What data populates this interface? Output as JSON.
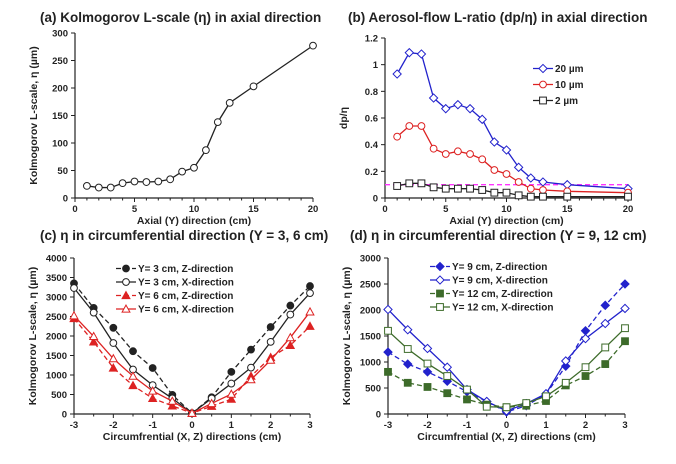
{
  "chart_data": [
    {
      "id": "a",
      "type": "line",
      "title": "(a) Kolmogorov L-scale (η) in axial direction",
      "xlabel": "Axial (Y) direction (cm)",
      "ylabel": "Kolmogorov L-scale, η (µm)",
      "xlim": [
        0,
        20
      ],
      "ylim": [
        0,
        300
      ],
      "xticks": [
        0,
        5,
        10,
        15,
        20
      ],
      "yticks": [
        0,
        50,
        100,
        150,
        200,
        250,
        300
      ],
      "x": [
        1,
        2,
        3,
        4,
        5,
        6,
        7,
        8,
        9,
        10,
        11,
        12,
        13,
        15,
        20
      ],
      "series": [
        {
          "name": "η",
          "color": "#222222",
          "marker": "circle-open",
          "dash": false,
          "values": [
            22,
            19,
            19,
            27,
            30,
            29,
            30,
            34,
            48,
            55,
            87,
            138,
            173,
            203,
            277
          ]
        }
      ],
      "legend": null
    },
    {
      "id": "b",
      "type": "line",
      "title": "(b) Aerosol-flow L-ratio (dp/η) in axial direction",
      "xlabel": "Axial (Y) direction (cm)",
      "ylabel": "dp/η",
      "xlim": [
        0,
        20
      ],
      "ylim": [
        0,
        1.2
      ],
      "xticks": [
        0,
        5,
        10,
        15,
        20
      ],
      "yticks": [
        0,
        0.2,
        0.4,
        0.6,
        0.8,
        1,
        1.2
      ],
      "x": [
        1,
        2,
        3,
        4,
        5,
        6,
        7,
        8,
        9,
        10,
        11,
        12,
        13,
        15,
        20
      ],
      "reference_line": {
        "y": 0.1,
        "color": "#ff33ff",
        "dash": true
      },
      "series": [
        {
          "name": "20 µm",
          "color": "#2222cc",
          "marker": "diamond-open",
          "dash": false,
          "values": [
            0.93,
            1.09,
            1.08,
            0.75,
            0.67,
            0.7,
            0.67,
            0.59,
            0.42,
            0.36,
            0.23,
            0.15,
            0.12,
            0.1,
            0.07
          ]
        },
        {
          "name": "10 µm",
          "color": "#dd2222",
          "marker": "circle-open",
          "dash": false,
          "values": [
            0.46,
            0.54,
            0.54,
            0.37,
            0.33,
            0.35,
            0.33,
            0.29,
            0.21,
            0.18,
            0.12,
            0.07,
            0.06,
            0.05,
            0.04
          ]
        },
        {
          "name": "2 µm",
          "color": "#222222",
          "marker": "square-open",
          "dash": false,
          "values": [
            0.09,
            0.11,
            0.11,
            0.08,
            0.07,
            0.07,
            0.07,
            0.06,
            0.04,
            0.04,
            0.02,
            0.01,
            0.01,
            0.01,
            0.01
          ]
        }
      ],
      "legend": "right"
    },
    {
      "id": "c",
      "type": "line",
      "title": "(c) η in circumferential direction (Y = 3, 6 cm)",
      "xlabel": "Circumfrential (X, Z) directions (cm)",
      "ylabel": "Kolmogorov L-scale, η (µm)",
      "xlim": [
        -3,
        3
      ],
      "ylim": [
        0,
        4000
      ],
      "xticks": [
        -3,
        -2,
        -1,
        0,
        1,
        2,
        3
      ],
      "yticks": [
        0,
        500,
        1000,
        1500,
        2000,
        2500,
        3000,
        3500,
        4000
      ],
      "x": [
        -3,
        -2.5,
        -2,
        -1.5,
        -1,
        -0.5,
        0,
        0.5,
        1,
        1.5,
        2,
        2.5,
        3
      ],
      "series": [
        {
          "name": "Y= 3 cm, Z-direction",
          "color": "#222222",
          "marker": "circle-filled",
          "dash": true,
          "values": [
            3350,
            2720,
            2210,
            1610,
            1180,
            490,
            20,
            430,
            1080,
            1650,
            2230,
            2780,
            3280
          ]
        },
        {
          "name": "Y= 3 cm, X-direction",
          "color": "#222222",
          "marker": "circle-open",
          "dash": false,
          "values": [
            3230,
            2600,
            1820,
            1140,
            740,
            400,
            20,
            400,
            780,
            1190,
            1850,
            2550,
            3100
          ]
        },
        {
          "name": "Y= 6 cm, Z-direction",
          "color": "#dd2222",
          "marker": "triangle-filled",
          "dash": true,
          "values": [
            2450,
            1850,
            1180,
            730,
            400,
            210,
            20,
            200,
            380,
            970,
            1450,
            1760,
            2250
          ]
        },
        {
          "name": "Y= 6 cm, X-direction",
          "color": "#dd2222",
          "marker": "triangle-open",
          "dash": false,
          "values": [
            2520,
            1990,
            1420,
            970,
            590,
            330,
            20,
            270,
            510,
            880,
            1380,
            1960,
            2620
          ]
        }
      ],
      "legend": "top"
    },
    {
      "id": "d",
      "type": "line",
      "title": "(d) η in circumferential direction (Y = 9, 12 cm)",
      "xlabel": "Circumfrential (X, Z) directions (cm)",
      "ylabel": "Kolmogorov L-scale, η (µm)",
      "xlim": [
        -3,
        3
      ],
      "ylim": [
        0,
        3000
      ],
      "xticks": [
        -3,
        -2,
        -1,
        0,
        1,
        2,
        3
      ],
      "yticks": [
        0,
        500,
        1000,
        1500,
        2000,
        2500,
        3000
      ],
      "x": [
        -3,
        -2.5,
        -2,
        -1.5,
        -1,
        -0.5,
        0,
        0.5,
        1,
        1.5,
        2,
        2.5,
        3
      ],
      "series": [
        {
          "name": "Y= 9 cm, Z-direction",
          "color": "#2222cc",
          "marker": "diamond-filled",
          "dash": true,
          "values": [
            1190,
            960,
            810,
            630,
            430,
            240,
            40,
            160,
            380,
            920,
            1600,
            2090,
            2500
          ]
        },
        {
          "name": "Y= 9 cm, X-direction",
          "color": "#2222cc",
          "marker": "diamond-open",
          "dash": false,
          "values": [
            2010,
            1620,
            1260,
            900,
            470,
            240,
            60,
            200,
            390,
            1020,
            1450,
            1740,
            2030
          ]
        },
        {
          "name": "Y= 12 cm, Z-direction",
          "color": "#3d6b2a",
          "marker": "square-filled",
          "dash": true,
          "values": [
            810,
            600,
            520,
            400,
            280,
            180,
            130,
            160,
            250,
            550,
            730,
            960,
            1400
          ]
        },
        {
          "name": "Y= 12 cm, X-direction",
          "color": "#3d6b2a",
          "marker": "square-open",
          "dash": false,
          "values": [
            1600,
            1250,
            970,
            730,
            470,
            140,
            130,
            210,
            340,
            600,
            900,
            1280,
            1650
          ]
        }
      ],
      "legend": "top"
    }
  ]
}
